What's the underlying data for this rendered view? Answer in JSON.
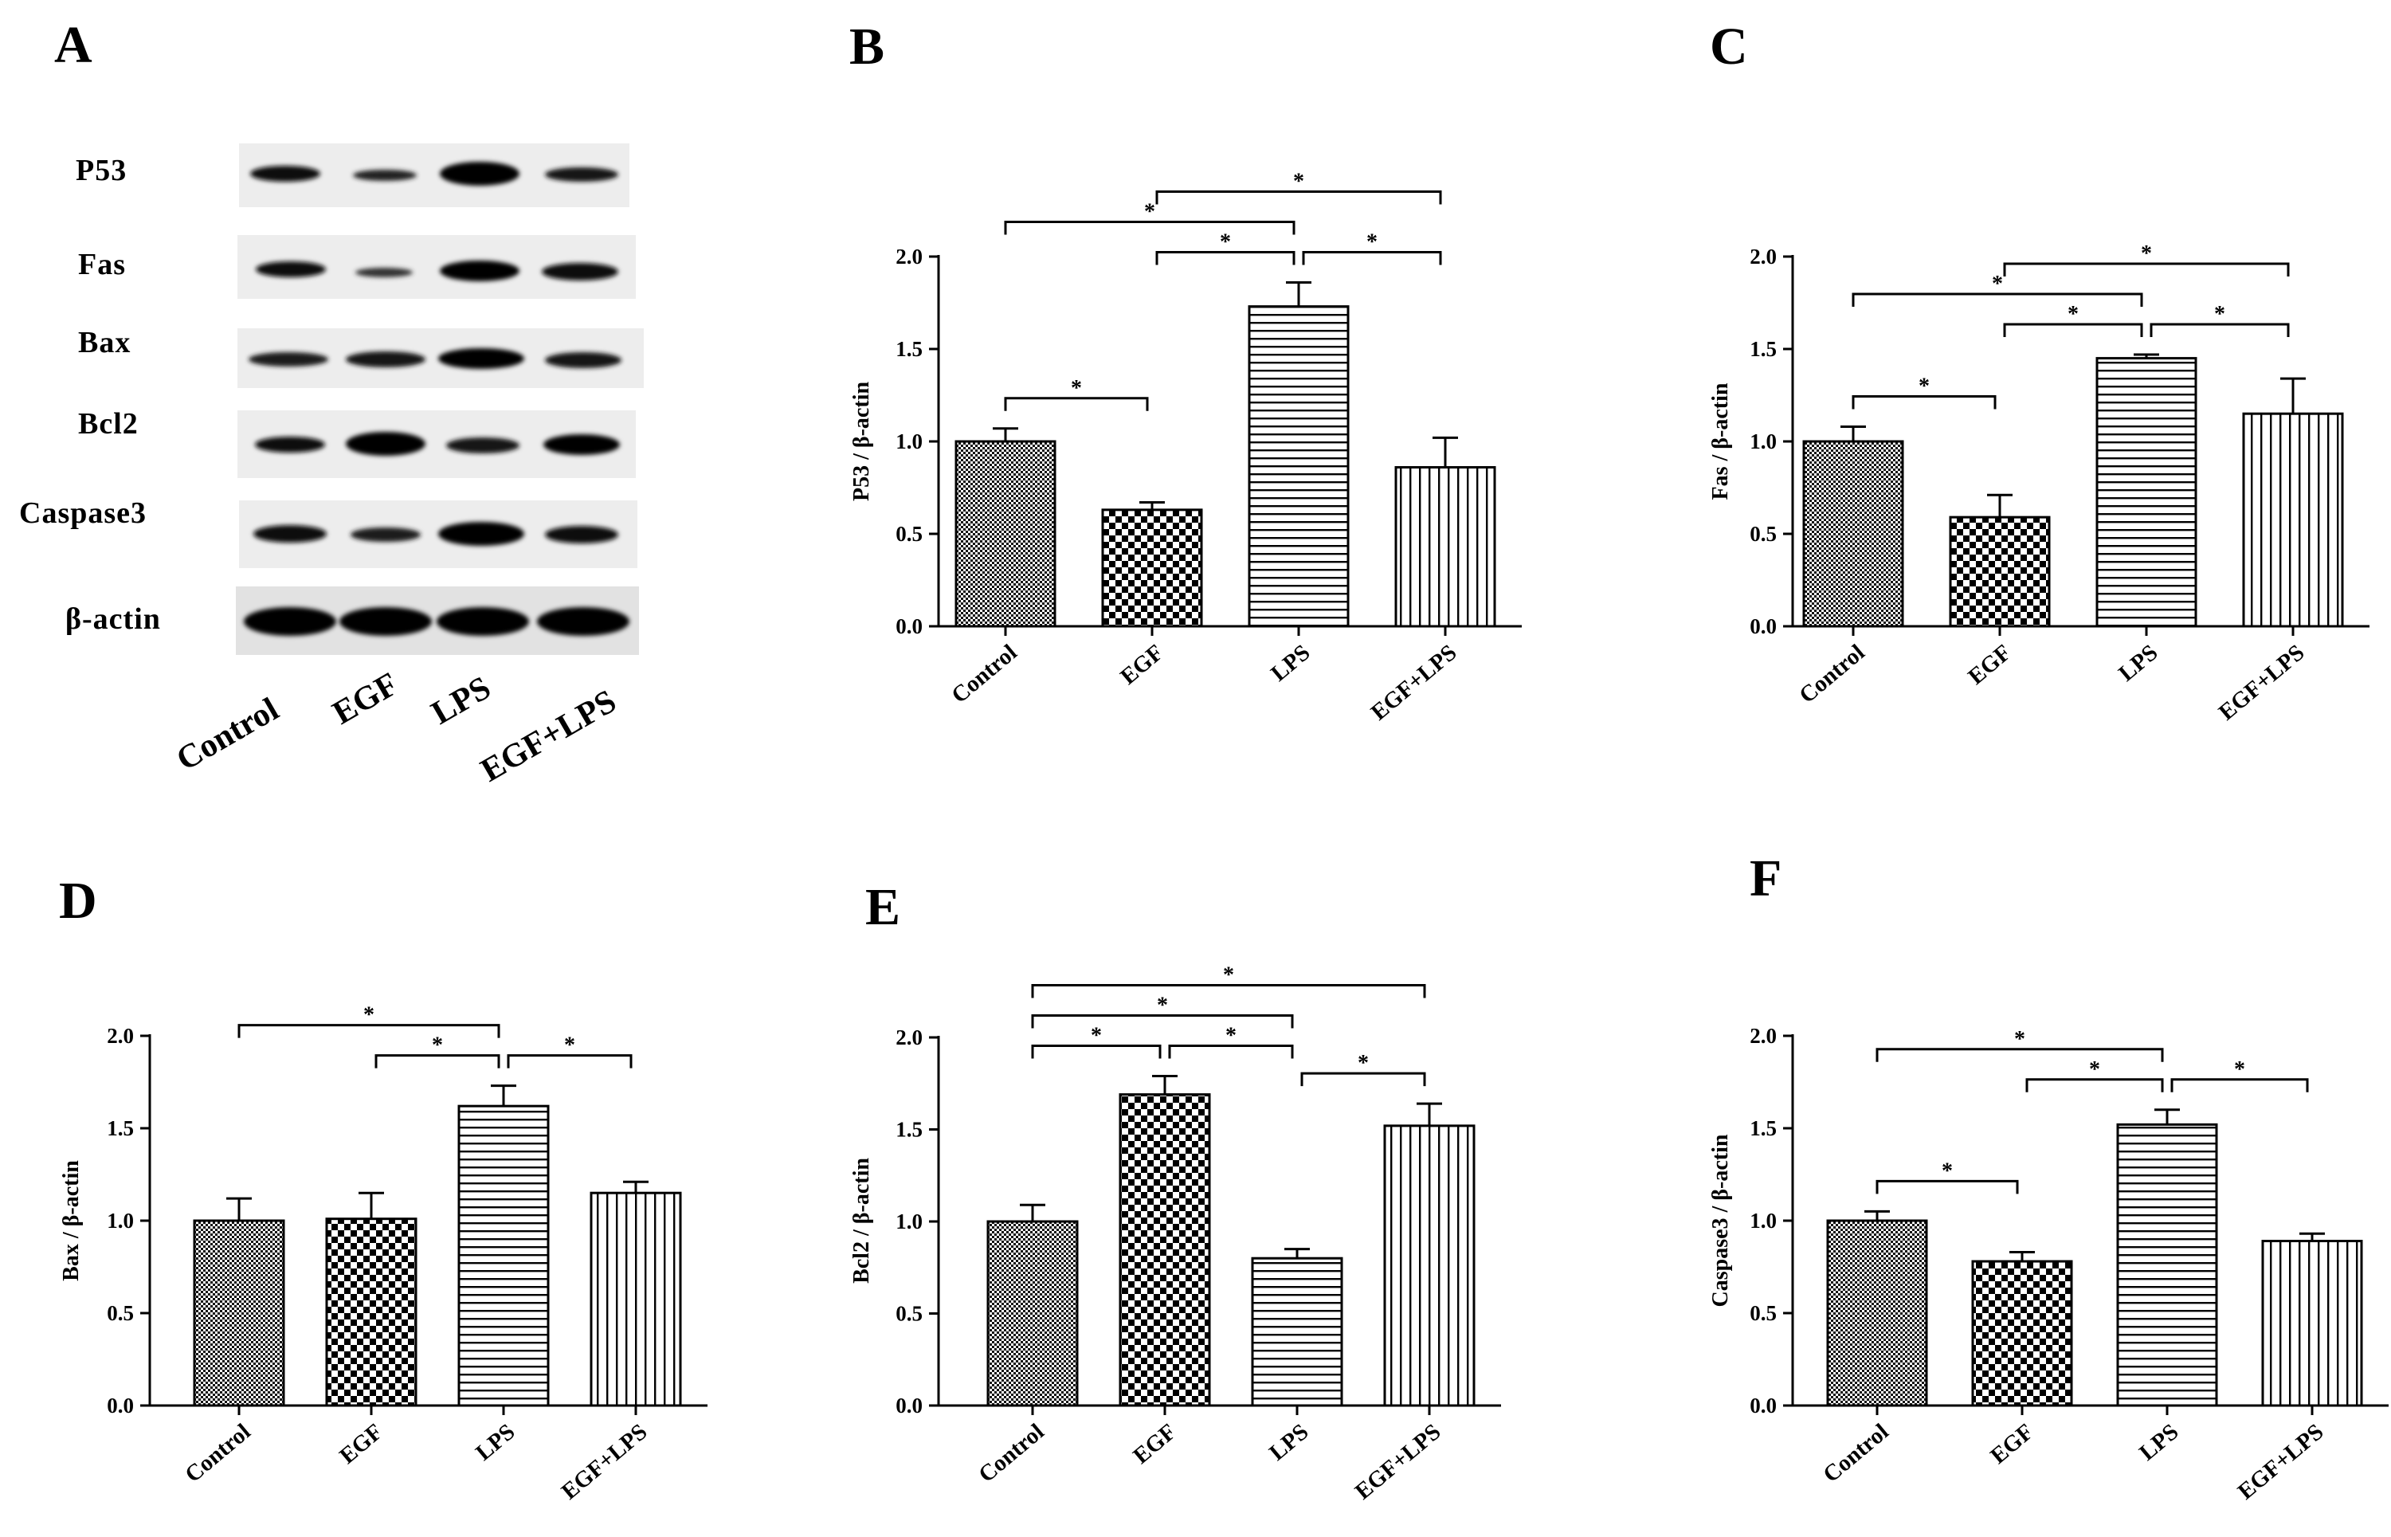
{
  "blot": {
    "letter": "A",
    "rows": [
      "P53",
      "Fas",
      "Bax",
      "Bcl2",
      "Caspase3",
      "β-actin"
    ],
    "categories": [
      "Control",
      "EGF",
      "LPS",
      "EGF+LPS"
    ]
  },
  "chart_data": [
    {
      "letter": "B",
      "type": "bar",
      "ylabel": "P53 / β-actin",
      "categories": [
        "Control",
        "EGF",
        "LPS",
        "EGF+LPS"
      ],
      "values": [
        1.0,
        0.63,
        1.73,
        0.86
      ],
      "errors": [
        0.07,
        0.04,
        0.13,
        0.16
      ],
      "ylim": [
        0,
        2.0
      ],
      "yticks": [
        "0.0",
        "0.5",
        "1.0",
        "1.5",
        "2.0"
      ],
      "comparisons": [
        {
          "from": 0,
          "to": 1,
          "label": "*"
        },
        {
          "from": 1,
          "to": 2,
          "label": "*"
        },
        {
          "from": 2,
          "to": 3,
          "label": "*"
        },
        {
          "from": 0,
          "to": 2,
          "label": "*"
        },
        {
          "from": 1,
          "to": 3,
          "label": "*"
        }
      ]
    },
    {
      "letter": "C",
      "type": "bar",
      "ylabel": "Fas / β-actin",
      "categories": [
        "Control",
        "EGF",
        "LPS",
        "EGF+LPS"
      ],
      "values": [
        1.0,
        0.59,
        1.45,
        1.15
      ],
      "errors": [
        0.08,
        0.12,
        0.02,
        0.19
      ],
      "ylim": [
        0,
        2.0
      ],
      "yticks": [
        "0.0",
        "0.5",
        "1.0",
        "1.5",
        "2.0"
      ],
      "comparisons": [
        {
          "from": 0,
          "to": 1,
          "label": "*"
        },
        {
          "from": 1,
          "to": 2,
          "label": "*"
        },
        {
          "from": 2,
          "to": 3,
          "label": "*"
        },
        {
          "from": 0,
          "to": 2,
          "label": "*"
        },
        {
          "from": 1,
          "to": 3,
          "label": "*"
        }
      ]
    },
    {
      "letter": "D",
      "type": "bar",
      "ylabel": "Bax / β-actin",
      "categories": [
        "Control",
        "EGF",
        "LPS",
        "EGF+LPS"
      ],
      "values": [
        1.0,
        1.01,
        1.62,
        1.15
      ],
      "errors": [
        0.12,
        0.14,
        0.11,
        0.06
      ],
      "ylim": [
        0,
        2.0
      ],
      "yticks": [
        "0.0",
        "0.5",
        "1.0",
        "1.5",
        "2.0"
      ],
      "comparisons": [
        {
          "from": 1,
          "to": 2,
          "label": "*"
        },
        {
          "from": 2,
          "to": 3,
          "label": "*"
        },
        {
          "from": 0,
          "to": 2,
          "label": "*"
        }
      ]
    },
    {
      "letter": "E",
      "type": "bar",
      "ylabel": "Bcl2 / β-actin",
      "categories": [
        "Control",
        "EGF",
        "LPS",
        "EGF+LPS"
      ],
      "values": [
        1.0,
        1.69,
        0.8,
        1.52
      ],
      "errors": [
        0.09,
        0.1,
        0.05,
        0.12
      ],
      "ylim": [
        0,
        2.0
      ],
      "yticks": [
        "0.0",
        "0.5",
        "1.0",
        "1.5",
        "2.0"
      ],
      "comparisons": [
        {
          "from": 0,
          "to": 1,
          "label": "*"
        },
        {
          "from": 1,
          "to": 2,
          "label": "*"
        },
        {
          "from": 2,
          "to": 3,
          "label": "*"
        },
        {
          "from": 0,
          "to": 2,
          "label": "*"
        },
        {
          "from": 0,
          "to": 3,
          "label": "*"
        }
      ]
    },
    {
      "letter": "F",
      "type": "bar",
      "ylabel": "Caspase3 / β-actin",
      "categories": [
        "Control",
        "EGF",
        "LPS",
        "EGF+LPS"
      ],
      "values": [
        1.0,
        0.78,
        1.52,
        0.89
      ],
      "errors": [
        0.05,
        0.05,
        0.08,
        0.04
      ],
      "ylim": [
        0,
        2.0
      ],
      "yticks": [
        "0.0",
        "0.5",
        "1.0",
        "1.5",
        "2.0"
      ],
      "comparisons": [
        {
          "from": 0,
          "to": 1,
          "label": "*"
        },
        {
          "from": 1,
          "to": 2,
          "label": "*"
        },
        {
          "from": 2,
          "to": 3,
          "label": "*"
        },
        {
          "from": 0,
          "to": 2,
          "label": "*"
        }
      ]
    }
  ]
}
